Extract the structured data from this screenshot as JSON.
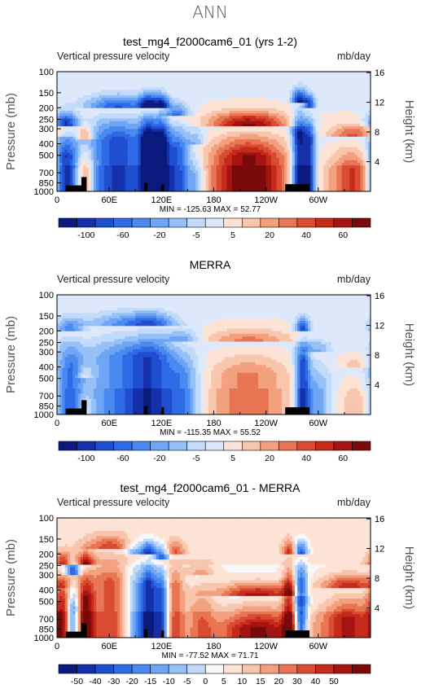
{
  "suptitle": "ANN",
  "chart_data": [
    {
      "type": "heatmap",
      "title": "test_mg4_f2000cam6_01 (yrs 1-2)",
      "left_label": "Vertical pressure velocity",
      "right_label": "mb/day",
      "ylabel": "Pressure (mb)",
      "ylabel_right": "Height (km)",
      "x_ticklabels": [
        "0",
        "60E",
        "120E",
        "180",
        "120W",
        "60W"
      ],
      "y_ticklabels": [
        "100",
        "150",
        "200",
        "250",
        "300",
        "400",
        "500",
        "700",
        "850",
        "1000"
      ],
      "y_ticks": [
        100,
        150,
        200,
        250,
        300,
        400,
        500,
        700,
        850,
        1000
      ],
      "height_ticklabels": [
        "16",
        "12",
        "8",
        "4"
      ],
      "height_ticks_km": [
        16,
        12,
        8,
        4
      ],
      "stats": "MIN = -125.63   MAX =  52.77",
      "min": -125.63,
      "max": 52.77,
      "colorbar_labels": [
        "-100",
        "-60",
        "-20",
        "-5",
        "5",
        "20",
        "40",
        "60"
      ],
      "colorbar_colors": [
        "#0a1a7d",
        "#1530a8",
        "#1f4fcf",
        "#2f6be6",
        "#4a8af0",
        "#6ea5f4",
        "#96c1f7",
        "#c3dbfb",
        "#dde9fb",
        "#fce3d6",
        "#f8c5ad",
        "#f3a07e",
        "#e87553",
        "#d94c33",
        "#c62a1b",
        "#a51410",
        "#7a0a0a"
      ],
      "xlim": [
        0,
        360
      ],
      "ylim": [
        1000,
        100
      ],
      "features": {
        "regime": "model",
        "bands": [
          {
            "lon": 10,
            "width": 10,
            "top": 280,
            "strength": -0.9
          },
          {
            "lon": 32,
            "width": 7,
            "top": 360,
            "strength": 0.55
          },
          {
            "lon": 70,
            "width": 26,
            "top": 200,
            "strength": -0.75
          },
          {
            "lon": 105,
            "width": 7,
            "top": 200,
            "strength": -1.0
          },
          {
            "lon": 120,
            "width": 6,
            "top": 200,
            "strength": -0.95
          },
          {
            "lon": 138,
            "width": 10,
            "top": 240,
            "strength": -0.7
          },
          {
            "lon": 160,
            "width": 7,
            "top": 400,
            "strength": -0.35
          },
          {
            "lon": 220,
            "width": 32,
            "top": 280,
            "strength": 0.95
          },
          {
            "lon": 278,
            "width": 6,
            "top": 180,
            "strength": -1.0
          },
          {
            "lon": 290,
            "width": 5,
            "top": 200,
            "strength": -0.8
          },
          {
            "lon": 340,
            "width": 20,
            "top": 350,
            "strength": 0.6
          }
        ]
      }
    },
    {
      "type": "heatmap",
      "title": "MERRA",
      "left_label": "Vertical pressure velocity",
      "right_label": "mb/day",
      "ylabel": "Pressure (mb)",
      "ylabel_right": "Height (km)",
      "x_ticklabels": [
        "0",
        "60E",
        "120E",
        "180",
        "120W",
        "60W"
      ],
      "y_ticklabels": [
        "100",
        "150",
        "200",
        "250",
        "300",
        "400",
        "500",
        "700",
        "850",
        "1000"
      ],
      "y_ticks": [
        100,
        150,
        200,
        250,
        300,
        400,
        500,
        700,
        850,
        1000
      ],
      "height_ticklabels": [
        "16",
        "12",
        "8",
        "4"
      ],
      "height_ticks_km": [
        16,
        12,
        8,
        4
      ],
      "stats": "MIN = -115.35   MAX =  55.52",
      "min": -115.35,
      "max": 55.52,
      "colorbar_labels": [
        "-100",
        "-60",
        "-20",
        "-5",
        "5",
        "20",
        "40",
        "60"
      ],
      "colorbar_colors": [
        "#0a1a7d",
        "#1530a8",
        "#1f4fcf",
        "#2f6be6",
        "#4a8af0",
        "#6ea5f4",
        "#96c1f7",
        "#c3dbfb",
        "#dde9fb",
        "#fce3d6",
        "#f8c5ad",
        "#f3a07e",
        "#e87553",
        "#d94c33",
        "#c62a1b",
        "#a51410",
        "#7a0a0a"
      ],
      "xlim": [
        0,
        360
      ],
      "ylim": [
        1000,
        100
      ],
      "features": {
        "regime": "obs",
        "bands": [
          {
            "lon": 14,
            "width": 12,
            "top": 200,
            "strength": -0.55
          },
          {
            "lon": 32,
            "width": 6,
            "top": 500,
            "strength": 0.3
          },
          {
            "lon": 75,
            "width": 30,
            "top": 180,
            "strength": -0.5
          },
          {
            "lon": 110,
            "width": 18,
            "top": 180,
            "strength": -0.55
          },
          {
            "lon": 145,
            "width": 14,
            "top": 250,
            "strength": -0.45
          },
          {
            "lon": 220,
            "width": 35,
            "top": 250,
            "strength": 0.45
          },
          {
            "lon": 282,
            "width": 6,
            "top": 200,
            "strength": -0.85
          },
          {
            "lon": 300,
            "width": 10,
            "top": 300,
            "strength": -0.35
          },
          {
            "lon": 345,
            "width": 15,
            "top": 400,
            "strength": 0.25
          }
        ]
      }
    },
    {
      "type": "heatmap",
      "title": "test_mg4_f2000cam6_01 - MERRA",
      "left_label": "Vertical pressure velocity",
      "right_label": "mb/day",
      "ylabel": "Pressure (mb)",
      "ylabel_right": "Height (km)",
      "x_ticklabels": [
        "0",
        "60E",
        "120E",
        "180",
        "120W",
        "60W"
      ],
      "y_ticklabels": [
        "100",
        "150",
        "200",
        "250",
        "300",
        "400",
        "500",
        "700",
        "850",
        "1000"
      ],
      "y_ticks": [
        100,
        150,
        200,
        250,
        300,
        400,
        500,
        700,
        850,
        1000
      ],
      "height_ticklabels": [
        "16",
        "12",
        "8",
        "4"
      ],
      "height_ticks_km": [
        16,
        12,
        8,
        4
      ],
      "stats": "MIN = -77.52   MAX =  71.71",
      "min": -77.52,
      "max": 71.71,
      "colorbar_labels": [
        "-50",
        "-40",
        "-30",
        "-20",
        "-15",
        "-10",
        "-5",
        "0",
        "5",
        "10",
        "15",
        "20",
        "30",
        "40",
        "50"
      ],
      "colorbar_colors": [
        "#0a1a7d",
        "#1530a8",
        "#1f4fcf",
        "#2f6be6",
        "#4a8af0",
        "#6ea5f4",
        "#96c1f7",
        "#c3dbfb",
        "#f8f8f8",
        "#fce3d6",
        "#f8c5ad",
        "#f3a07e",
        "#e87553",
        "#d94c33",
        "#c62a1b",
        "#a51410",
        "#7a0a0a"
      ],
      "xlim": [
        0,
        360
      ],
      "ylim": [
        1000,
        100
      ],
      "features": {
        "regime": "diff",
        "bands": [
          {
            "lon": 8,
            "width": 8,
            "top": 250,
            "strength": 0.7
          },
          {
            "lon": 18,
            "width": 6,
            "top": 300,
            "strength": -0.9
          },
          {
            "lon": 32,
            "width": 7,
            "top": 250,
            "strength": 0.8
          },
          {
            "lon": 60,
            "width": 18,
            "top": 180,
            "strength": 0.55
          },
          {
            "lon": 90,
            "width": 8,
            "top": 200,
            "strength": -0.45
          },
          {
            "lon": 105,
            "width": 6,
            "top": 200,
            "strength": -0.9
          },
          {
            "lon": 120,
            "width": 6,
            "top": 220,
            "strength": -0.8
          },
          {
            "lon": 135,
            "width": 8,
            "top": 200,
            "strength": 0.5
          },
          {
            "lon": 165,
            "width": 12,
            "top": 300,
            "strength": 0.35
          },
          {
            "lon": 230,
            "width": 32,
            "top": 450,
            "strength": 0.85
          },
          {
            "lon": 279,
            "width": 6,
            "top": 200,
            "strength": -0.95
          },
          {
            "lon": 268,
            "width": 6,
            "top": 200,
            "strength": 0.75
          },
          {
            "lon": 335,
            "width": 22,
            "top": 380,
            "strength": 0.75
          }
        ]
      }
    }
  ]
}
